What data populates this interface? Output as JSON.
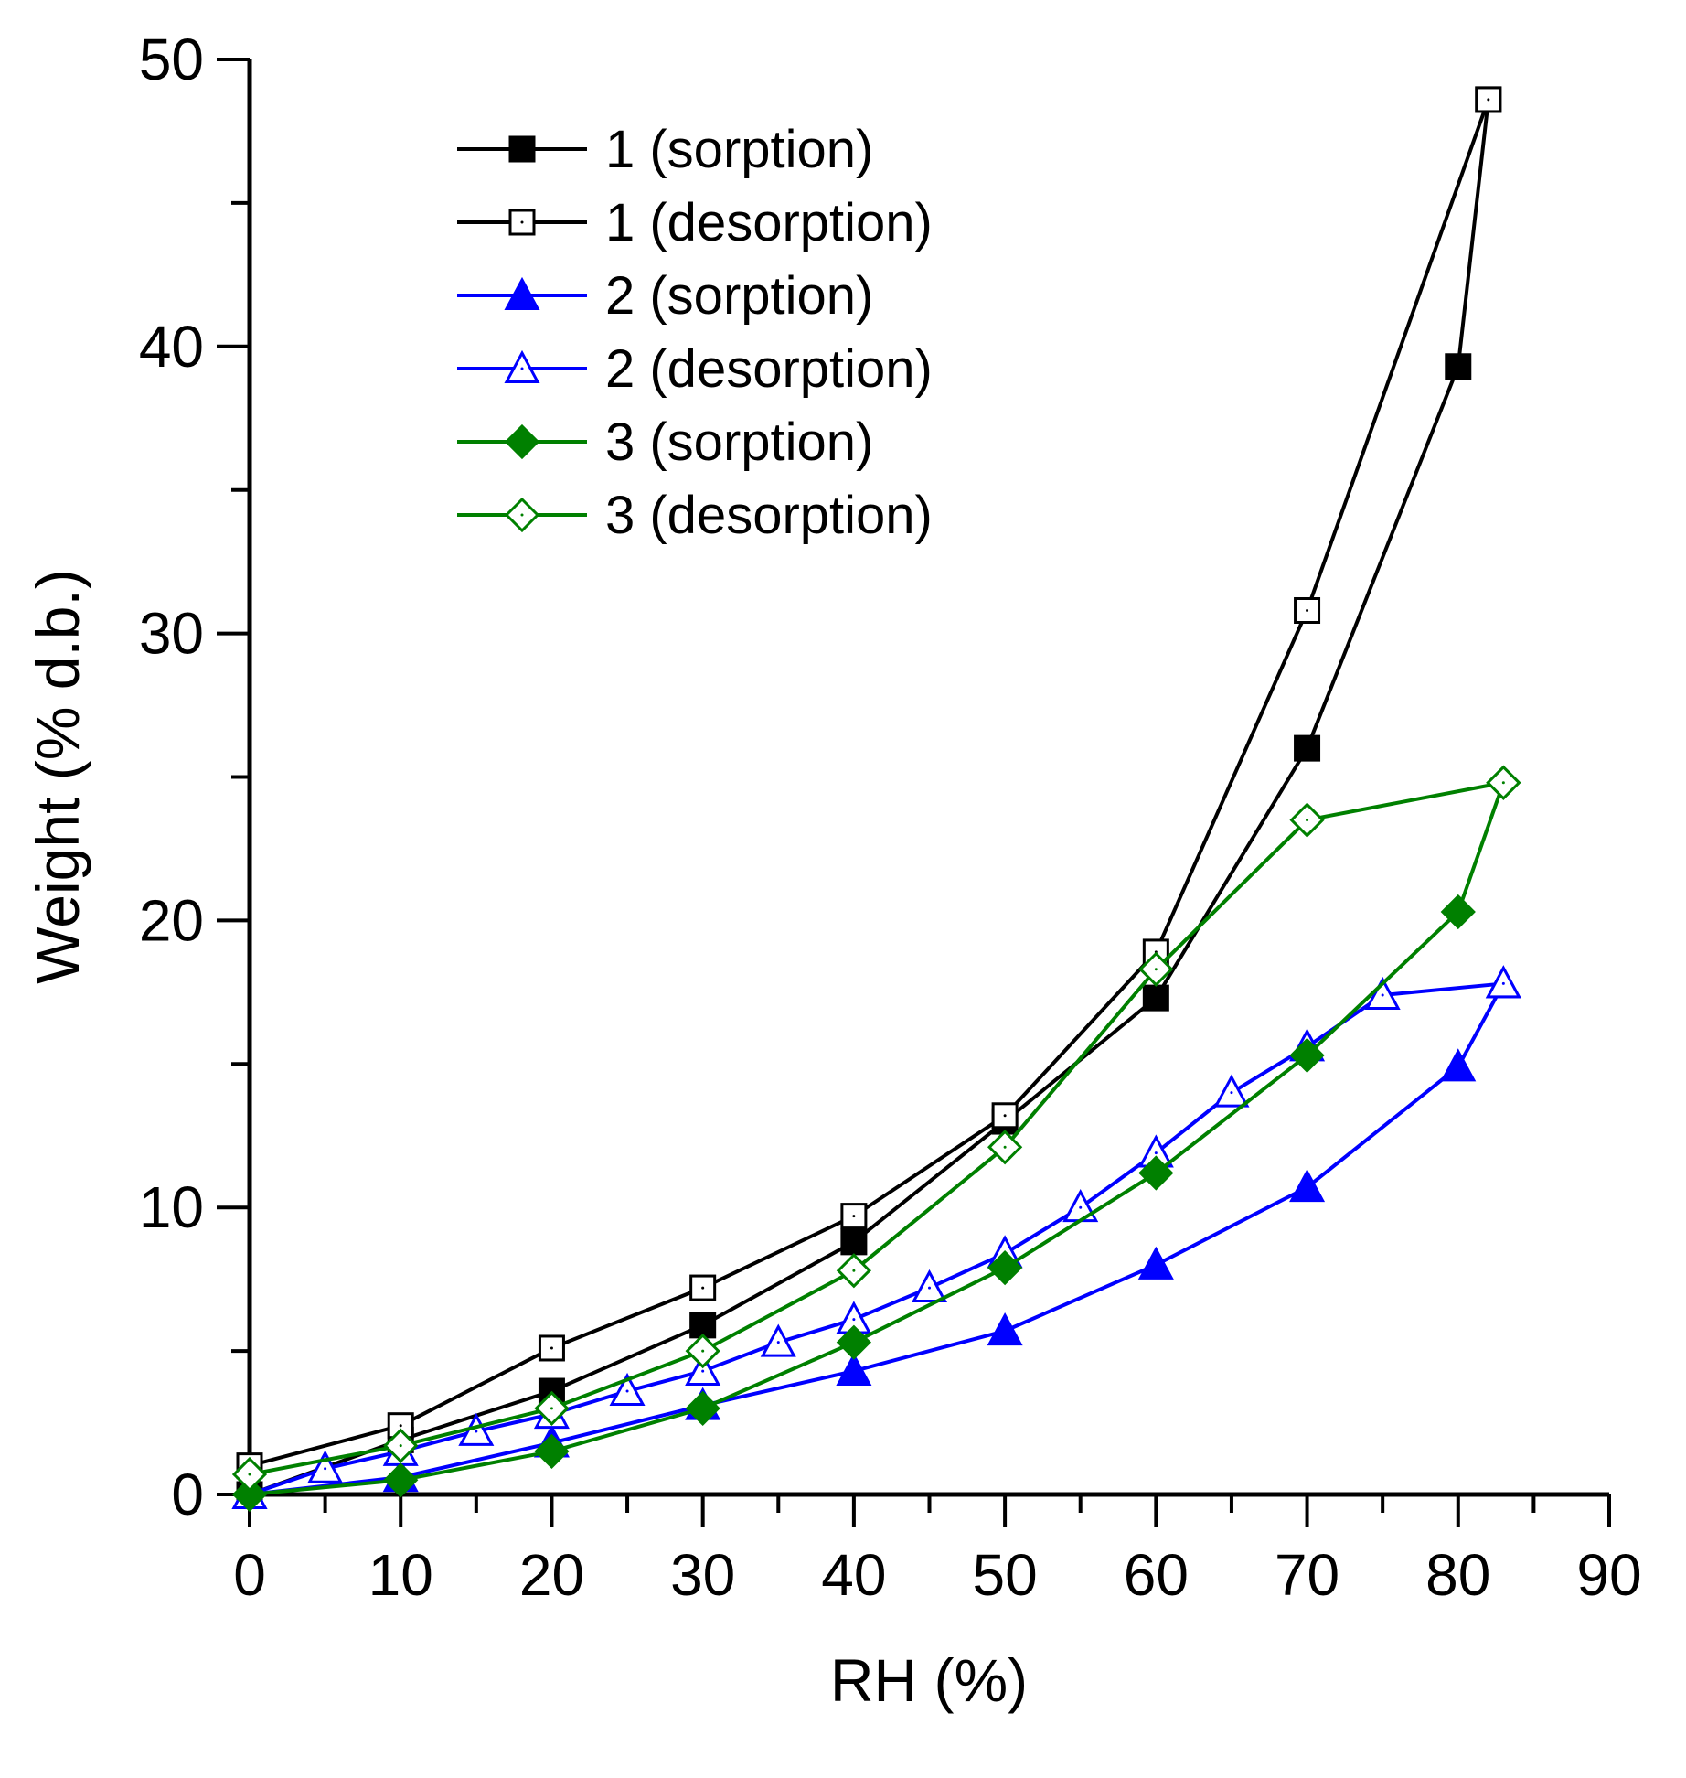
{
  "chart_data": {
    "type": "line",
    "xlabel": "RH (%)",
    "ylabel": "Weight (% d.b.)",
    "xlim": [
      0,
      90
    ],
    "ylim": [
      0,
      50
    ],
    "xticks": [
      0,
      10,
      20,
      30,
      40,
      50,
      60,
      70,
      80,
      90
    ],
    "yticks": [
      0,
      10,
      20,
      30,
      40,
      50
    ],
    "legend_position": "top-left",
    "grid": false,
    "series": [
      {
        "name": "1 (sorption)",
        "color": "#000000",
        "marker": "square",
        "filled": true,
        "x": [
          0,
          10,
          20,
          30,
          40,
          50,
          60,
          70,
          80,
          82
        ],
        "y": [
          0.0,
          1.9,
          3.6,
          5.9,
          8.8,
          13.0,
          17.3,
          26.0,
          39.3,
          48.6
        ]
      },
      {
        "name": "1 (desorption)",
        "color": "#000000",
        "marker": "square",
        "filled": false,
        "x": [
          0,
          10,
          20,
          30,
          40,
          50,
          60,
          70,
          82
        ],
        "y": [
          1.0,
          2.4,
          5.1,
          7.2,
          9.7,
          13.2,
          18.9,
          30.8,
          48.6
        ]
      },
      {
        "name": "2 (sorption)",
        "color": "#0000ff",
        "marker": "triangle",
        "filled": true,
        "x": [
          0,
          10,
          20,
          30,
          40,
          50,
          60,
          70,
          80,
          83
        ],
        "y": [
          0.0,
          0.6,
          1.8,
          3.1,
          4.3,
          5.7,
          8.0,
          10.7,
          14.9,
          17.8
        ]
      },
      {
        "name": "2 (desorption)",
        "color": "#0000ff",
        "marker": "triangle",
        "filled": false,
        "x": [
          0,
          5,
          10,
          15,
          20,
          25,
          30,
          35,
          40,
          45,
          50,
          55,
          60,
          65,
          70,
          75,
          83
        ],
        "y": [
          0.0,
          0.9,
          1.5,
          2.2,
          2.8,
          3.6,
          4.3,
          5.3,
          6.1,
          7.2,
          8.4,
          10.0,
          11.9,
          14.0,
          15.6,
          17.4,
          17.8
        ]
      },
      {
        "name": "3 (sorption)",
        "color": "#008000",
        "marker": "diamond",
        "filled": true,
        "x": [
          0,
          10,
          20,
          30,
          40,
          50,
          60,
          70,
          80,
          83
        ],
        "y": [
          0.0,
          0.5,
          1.5,
          3.0,
          5.3,
          7.9,
          11.2,
          15.3,
          20.3,
          24.8
        ]
      },
      {
        "name": "3 (desorption)",
        "color": "#008000",
        "marker": "diamond",
        "filled": false,
        "x": [
          0,
          10,
          20,
          30,
          40,
          50,
          60,
          70,
          83
        ],
        "y": [
          0.7,
          1.7,
          3.0,
          5.0,
          7.8,
          12.1,
          18.3,
          23.5,
          24.8
        ]
      }
    ]
  }
}
